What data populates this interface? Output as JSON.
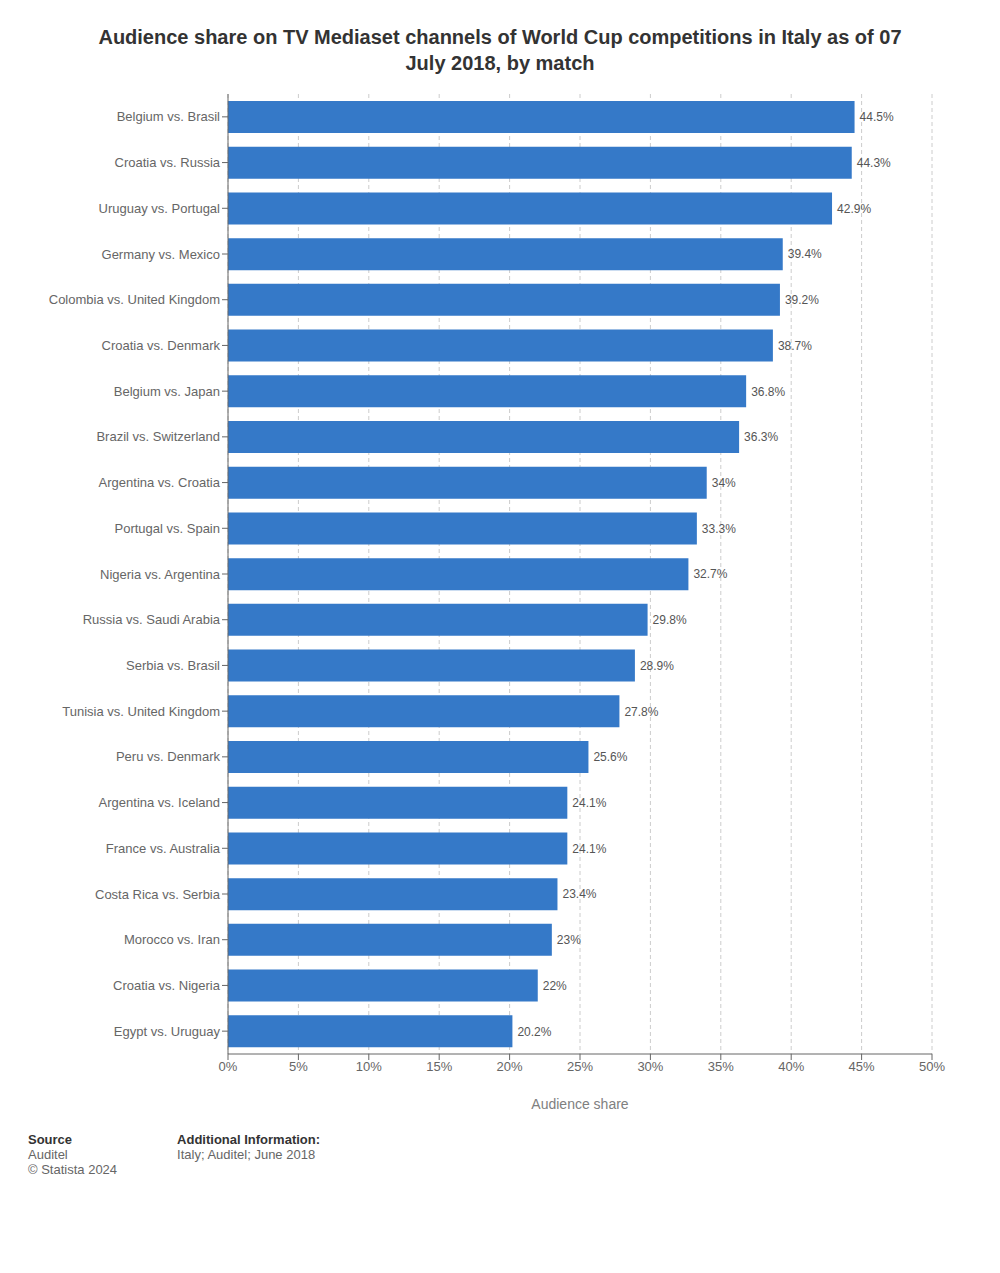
{
  "chart_data": {
    "type": "bar",
    "orientation": "horizontal",
    "title": "Audience share on TV Mediaset channels of World Cup competitions in Italy as of 07\nJuly 2018, by match",
    "categories": [
      "Egypt vs. Uruguay",
      "Croatia vs. Nigeria",
      "Morocco vs. Iran",
      "Costa Rica vs. Serbia",
      "France vs. Australia",
      "Argentina vs. Iceland",
      "Peru vs. Denmark",
      "Tunisia vs. United Kingdom",
      "Serbia vs. Brasil",
      "Russia vs. Saudi Arabia",
      "Nigeria vs. Argentina",
      "Portugal vs. Spain",
      "Argentina vs. Croatia",
      "Brazil vs. Switzerland",
      "Belgium vs. Japan",
      "Croatia vs. Denmark",
      "Colombia vs. United Kingdom",
      "Germany vs. Mexico",
      "Uruguay vs. Portugal",
      "Croatia vs. Russia",
      "Belgium vs. Brasil"
    ],
    "values": [
      20.2,
      22.0,
      23.0,
      23.4,
      24.1,
      24.1,
      25.6,
      27.8,
      28.9,
      29.8,
      32.7,
      33.3,
      34.0,
      36.3,
      36.8,
      38.7,
      39.2,
      39.4,
      42.9,
      44.3,
      44.5
    ],
    "value_labels": [
      "20.2%",
      "22%",
      "23%",
      "23.4%",
      "24.1%",
      "24.1%",
      "25.6%",
      "27.8%",
      "28.9%",
      "29.8%",
      "32.7%",
      "33.3%",
      "34%",
      "36.3%",
      "36.8%",
      "38.7%",
      "39.2%",
      "39.4%",
      "42.9%",
      "44.3%",
      "44.5%"
    ],
    "data_labels": true,
    "color": "#3579c8",
    "xlabel": "Audience share",
    "xlim": [
      0,
      50
    ],
    "xticks": [
      {
        "value": 0,
        "label": "0%"
      },
      {
        "value": 5,
        "label": "5%"
      },
      {
        "value": 10,
        "label": "10%"
      },
      {
        "value": 15,
        "label": "15%"
      },
      {
        "value": 20,
        "label": "20%"
      },
      {
        "value": 25,
        "label": "25%"
      },
      {
        "value": 30,
        "label": "30%"
      },
      {
        "value": 35,
        "label": "35%"
      },
      {
        "value": 40,
        "label": "40%"
      },
      {
        "value": 45,
        "label": "45%"
      },
      {
        "value": 50,
        "label": "50%"
      }
    ],
    "grid": true,
    "annotations": [
      "Source",
      "Auditel\n© Statista 2024",
      "Additional Information:",
      "Italy; Auditel; June 2018"
    ]
  }
}
